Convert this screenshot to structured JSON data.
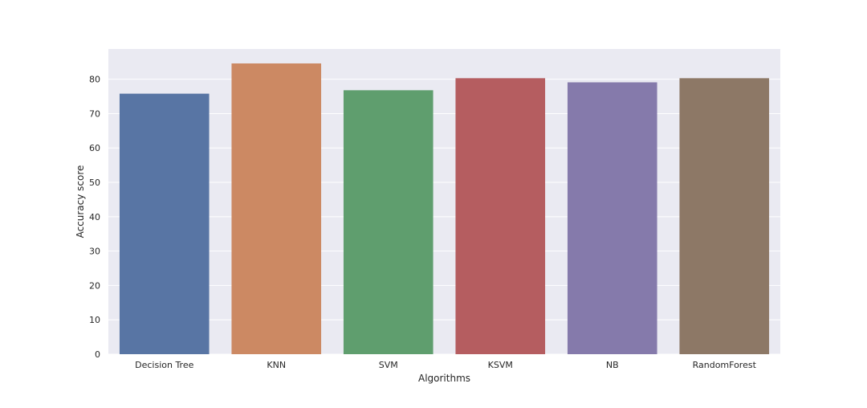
{
  "chart_data": {
    "type": "bar",
    "title": "",
    "xlabel": "Algorithms",
    "ylabel": "Accuracy score",
    "categories": [
      "Decision Tree",
      "KNN",
      "SVM",
      "KSVM",
      "NB",
      "RandomForest"
    ],
    "values": [
      75.8,
      84.6,
      76.8,
      80.3,
      79.1,
      80.3
    ],
    "ylim": [
      0,
      88.8
    ],
    "yticks": [
      0,
      10,
      20,
      30,
      40,
      50,
      60,
      70,
      80
    ],
    "colors": [
      "#5875a4",
      "#cc8963",
      "#5f9e6e",
      "#b55d60",
      "#857aab",
      "#8d7866"
    ],
    "background": "#eaeaf2",
    "grid": true,
    "legend": "none"
  }
}
